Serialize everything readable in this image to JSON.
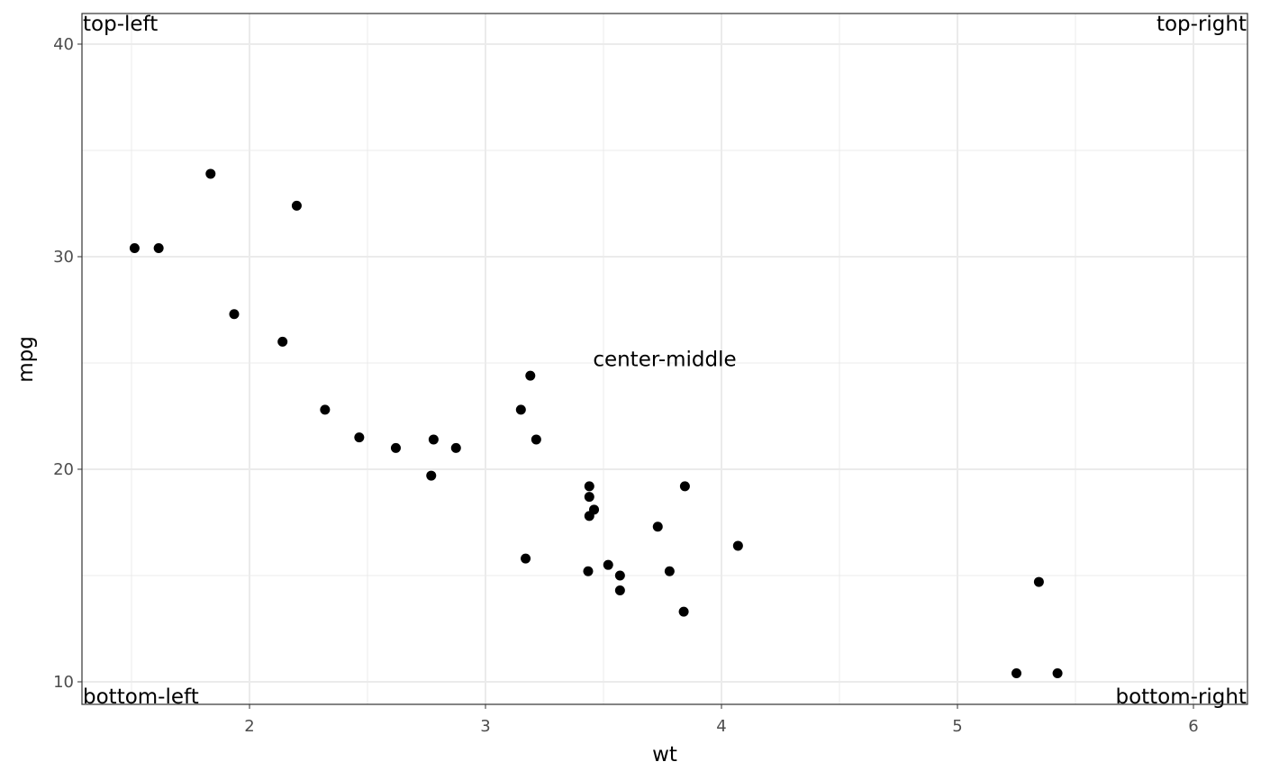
{
  "chart_data": {
    "type": "scatter",
    "x_label": "wt",
    "y_label": "mpg",
    "x": [
      2.62,
      2.875,
      2.32,
      3.215,
      3.44,
      3.46,
      3.57,
      3.19,
      3.15,
      3.44,
      3.44,
      4.07,
      3.73,
      3.78,
      5.25,
      5.424,
      5.345,
      2.2,
      1.615,
      1.835,
      2.465,
      3.52,
      3.435,
      3.84,
      3.845,
      1.935,
      2.14,
      1.513,
      3.17,
      2.77,
      3.57,
      2.78
    ],
    "values": [
      21.0,
      21.0,
      22.8,
      21.4,
      18.7,
      18.1,
      14.3,
      24.4,
      22.8,
      19.2,
      17.8,
      16.4,
      17.3,
      15.2,
      10.4,
      10.4,
      14.7,
      32.4,
      30.4,
      33.9,
      21.5,
      15.5,
      15.2,
      13.3,
      19.2,
      27.3,
      26.0,
      30.4,
      15.8,
      19.7,
      15.0,
      21.4
    ],
    "color": "#000000",
    "xlim": [
      1.29,
      6.229
    ],
    "ylim": [
      8.94,
      41.44
    ],
    "xticks": [
      2,
      3,
      4,
      5,
      6
    ],
    "yticks": [
      10,
      20,
      30,
      40
    ],
    "grid": true,
    "annotations": [
      {
        "text": "top-left",
        "position": "top-left"
      },
      {
        "text": "top-right",
        "position": "top-right"
      },
      {
        "text": "bottom-left",
        "position": "bottom-left"
      },
      {
        "text": "bottom-right",
        "position": "bottom-right"
      },
      {
        "text": "center-middle",
        "position": "center-middle"
      }
    ]
  }
}
